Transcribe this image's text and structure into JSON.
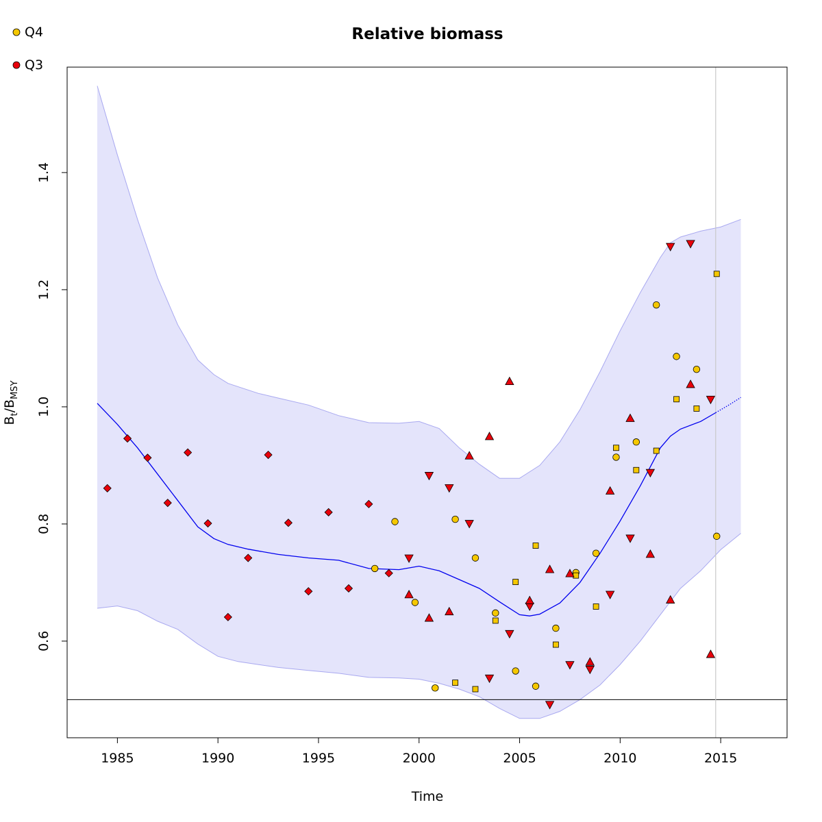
{
  "chart_data": {
    "type": "scatter",
    "title": "Relative biomass",
    "xlabel": "Time",
    "ylabel": {
      "main": "B",
      "sub1": "t",
      "sep": "/B",
      "sub2": "MSY"
    },
    "xlim": [
      1982.5,
      2018.3
    ],
    "ylim": [
      0.435,
      1.58
    ],
    "x_ticks": [
      1985,
      1990,
      1995,
      2000,
      2005,
      2010,
      2015
    ],
    "y_ticks": [
      0.6,
      0.8,
      1.0,
      1.2,
      1.4
    ],
    "x_tick_labels": [
      "1985",
      "1990",
      "1995",
      "2000",
      "2005",
      "2010",
      "2015"
    ],
    "y_tick_labels": [
      "0.6",
      "0.8",
      "1.0",
      "1.2",
      "1.4"
    ],
    "reference_line_y": 0.5,
    "reference_line_x": 2014.75,
    "colors": {
      "band_fill": "#e4e4fb",
      "band_edge": "#a8a8f0",
      "trend": "#0000ee",
      "ref_vertical": "#c8c8c8",
      "Q4": "#f5c800",
      "Q3": "#e8000b"
    },
    "legend": [
      {
        "name": "Q4",
        "color": "#f5c800"
      },
      {
        "name": "Q3",
        "color": "#e8000b"
      }
    ],
    "trend": [
      [
        1984,
        1.006
      ],
      [
        1985,
        0.97
      ],
      [
        1986,
        0.93
      ],
      [
        1987,
        0.885
      ],
      [
        1988,
        0.84
      ],
      [
        1989,
        0.795
      ],
      [
        1989.8,
        0.775
      ],
      [
        1990.5,
        0.765
      ],
      [
        1991.5,
        0.757
      ],
      [
        1993,
        0.748
      ],
      [
        1994.5,
        0.742
      ],
      [
        1996,
        0.738
      ],
      [
        1997.5,
        0.724
      ],
      [
        1999,
        0.722
      ],
      [
        2000,
        0.728
      ],
      [
        2001,
        0.72
      ],
      [
        2002,
        0.705
      ],
      [
        2003,
        0.69
      ],
      [
        2004,
        0.667
      ],
      [
        2005,
        0.645
      ],
      [
        2005.5,
        0.643
      ],
      [
        2006,
        0.646
      ],
      [
        2007,
        0.665
      ],
      [
        2008,
        0.7
      ],
      [
        2009,
        0.75
      ],
      [
        2010,
        0.805
      ],
      [
        2011,
        0.865
      ],
      [
        2012,
        0.93
      ],
      [
        2012.5,
        0.95
      ],
      [
        2013,
        0.962
      ],
      [
        2014,
        0.975
      ],
      [
        2014.75,
        0.99
      ]
    ],
    "trend_projection": [
      [
        2014.75,
        0.99
      ],
      [
        2015.5,
        1.005
      ],
      [
        2016,
        1.016
      ]
    ],
    "band_upper": [
      [
        1984,
        1.548
      ],
      [
        1985,
        1.43
      ],
      [
        1986,
        1.32
      ],
      [
        1987,
        1.22
      ],
      [
        1988,
        1.14
      ],
      [
        1989,
        1.08
      ],
      [
        1989.8,
        1.055
      ],
      [
        1990.5,
        1.04
      ],
      [
        1992,
        1.023
      ],
      [
        1993,
        1.015
      ],
      [
        1994.5,
        1.003
      ],
      [
        1996,
        0.985
      ],
      [
        1997.5,
        0.973
      ],
      [
        1999,
        0.972
      ],
      [
        2000,
        0.975
      ],
      [
        2001,
        0.963
      ],
      [
        2002,
        0.93
      ],
      [
        2003,
        0.902
      ],
      [
        2004,
        0.878
      ],
      [
        2005,
        0.878
      ],
      [
        2006,
        0.9
      ],
      [
        2007,
        0.94
      ],
      [
        2008,
        0.995
      ],
      [
        2009,
        1.06
      ],
      [
        2010,
        1.13
      ],
      [
        2011,
        1.195
      ],
      [
        2012,
        1.255
      ],
      [
        2012.5,
        1.28
      ],
      [
        2013,
        1.29
      ],
      [
        2014,
        1.3
      ],
      [
        2015,
        1.307
      ],
      [
        2016,
        1.32
      ]
    ],
    "band_lower": [
      [
        1984,
        0.656
      ],
      [
        1985,
        0.66
      ],
      [
        1986,
        0.652
      ],
      [
        1987,
        0.634
      ],
      [
        1988,
        0.62
      ],
      [
        1989,
        0.595
      ],
      [
        1990,
        0.574
      ],
      [
        1991,
        0.565
      ],
      [
        1992,
        0.56
      ],
      [
        1993,
        0.555
      ],
      [
        1994.5,
        0.55
      ],
      [
        1996,
        0.545
      ],
      [
        1997.5,
        0.538
      ],
      [
        1999,
        0.537
      ],
      [
        2000,
        0.535
      ],
      [
        2001,
        0.528
      ],
      [
        2002,
        0.518
      ],
      [
        2003,
        0.505
      ],
      [
        2004,
        0.485
      ],
      [
        2005,
        0.468
      ],
      [
        2006,
        0.468
      ],
      [
        2007,
        0.48
      ],
      [
        2008,
        0.5
      ],
      [
        2009,
        0.525
      ],
      [
        2010,
        0.56
      ],
      [
        2011,
        0.6
      ],
      [
        2012,
        0.645
      ],
      [
        2013,
        0.69
      ],
      [
        2014,
        0.72
      ],
      [
        2015,
        0.756
      ],
      [
        2016,
        0.784
      ]
    ],
    "series": [
      {
        "name": "Q4",
        "points": [
          {
            "shape": "circle",
            "x": [
              1997.8,
              1998.8,
              1999.8,
              2000.8,
              2001.8,
              2002.8,
              2003.8,
              2004.8,
              2005.8,
              2006.8,
              2007.8,
              2008.8,
              2009.8,
              2010.8,
              2011.8,
              2012.8,
              2013.8,
              2014.8
            ],
            "y": [
              0.724,
              0.804,
              0.666,
              0.52,
              0.808,
              0.742,
              0.648,
              0.549,
              0.523,
              0.622,
              0.717,
              0.75,
              0.914,
              0.94,
              1.174,
              1.086,
              1.064,
              0.779
            ]
          },
          {
            "shape": "square",
            "x": [
              2001.8,
              2002.8,
              2003.8,
              2004.8,
              2005.8,
              2006.8,
              2007.8,
              2008.8,
              2009.8,
              2010.8,
              2011.8,
              2012.8,
              2013.8,
              2014.8
            ],
            "y": [
              0.529,
              0.518,
              0.635,
              0.701,
              0.763,
              0.594,
              0.712,
              0.659,
              0.93,
              0.892,
              0.925,
              1.013,
              0.997,
              1.227
            ]
          }
        ]
      },
      {
        "name": "Q3",
        "points": [
          {
            "shape": "diamond",
            "x": [
              1984.5,
              1985.5,
              1986.5,
              1987.5,
              1988.5,
              1989.5,
              1990.5,
              1991.5,
              1992.5,
              1993.5,
              1994.5,
              1995.5,
              1996.5,
              1997.5,
              1998.5
            ],
            "y": [
              0.861,
              0.946,
              0.913,
              0.836,
              0.922,
              0.801,
              0.641,
              0.742,
              0.918,
              0.802,
              0.685,
              0.82,
              0.69,
              0.834,
              0.716
            ]
          },
          {
            "shape": "triangle-down",
            "x": [
              1999.5,
              2000.5,
              2001.5,
              2002.5,
              2003.5,
              2004.5,
              2005.5,
              2006.5,
              2007.5,
              2008.5,
              2009.5,
              2010.5,
              2011.5,
              2012.5,
              2013.5,
              2014.5
            ],
            "y": [
              0.742,
              0.883,
              0.862,
              0.801,
              0.537,
              0.613,
              0.66,
              0.492,
              0.56,
              0.552,
              0.68,
              0.776,
              0.888,
              1.274,
              1.279,
              1.013
            ]
          },
          {
            "shape": "triangle-up",
            "x": [
              1999.5,
              2000.5,
              2001.5,
              2002.5,
              2003.5,
              2004.5,
              2005.5,
              2006.5,
              2007.5,
              2008.5,
              2009.5,
              2010.5,
              2011.5,
              2012.5,
              2013.5,
              2014.5
            ],
            "y": [
              0.679,
              0.639,
              0.65,
              0.916,
              0.949,
              1.043,
              0.669,
              0.722,
              0.715,
              0.564,
              0.856,
              0.98,
              0.748,
              0.67,
              1.038,
              0.577
            ]
          }
        ]
      }
    ]
  }
}
